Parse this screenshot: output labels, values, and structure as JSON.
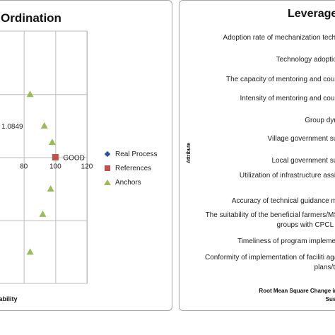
{
  "left_chart": {
    "title": "Ordination",
    "x_axis_title": "nability",
    "ref_label": "GOOD",
    "process_label": "1.0849",
    "x_tick_labels": [
      "80",
      "100",
      "120"
    ],
    "legend": [
      {
        "label": "Real Process",
        "color": "#2e4fa0",
        "marker": "diamond"
      },
      {
        "label": "References",
        "color": "#c0504d",
        "marker": "square"
      },
      {
        "label": "Anchors",
        "color": "#9bbb59",
        "marker": "triangle"
      }
    ]
  },
  "right_chart": {
    "title": "Leverage",
    "y_axis_title": "Attribute",
    "footer_line1": "Root Mean Square Change in Ord",
    "footer_line2": "Sustaina",
    "attributes": [
      "Adoption rate of mechanization technolo",
      "Technology adoption ra",
      "The capacity of mentoring and counseli",
      "Intensity of mentoring and counseli",
      "Group dynami",
      "Village government suppo",
      "Local government suppo",
      "Utilization of infrastructure assistan",
      "Accuracy of technical guidance mater",
      "The suitability of the beneficial farmers/MSME groups with CPCL decr",
      "Timeliness of program implementati",
      "Conformity of implementation of faciliti against plans/targe"
    ]
  },
  "chart_data": [
    {
      "type": "scatter",
      "title": "Ordination",
      "xlabel": "nability",
      "xlim": [
        60,
        120
      ],
      "ylim": [
        -100,
        100
      ],
      "x_ticks": [
        80,
        100,
        120
      ],
      "grid": true,
      "legend_position": "right",
      "series": [
        {
          "name": "Real Process",
          "points": [],
          "label": "1.0849"
        },
        {
          "name": "References",
          "points": [
            {
              "x": 100,
              "y": 0,
              "label": "GOOD"
            }
          ]
        },
        {
          "name": "Anchors",
          "points": [
            {
              "x": 58,
              "y": 75
            },
            {
              "x": 84,
              "y": 50
            },
            {
              "x": 93,
              "y": 25
            },
            {
              "x": 98,
              "y": 12
            },
            {
              "x": 97,
              "y": -25
            },
            {
              "x": 92,
              "y": -45
            },
            {
              "x": 84,
              "y": -75
            }
          ]
        }
      ]
    },
    {
      "type": "bar",
      "title": "Leverage",
      "ylabel": "Attribute",
      "xlabel": "Root Mean Square Change in Ord Sustaina",
      "categories": [
        "Adoption rate of mechanization technolo",
        "Technology adoption ra",
        "The capacity of mentoring and counseli",
        "Intensity of mentoring and counseli",
        "Group dynami",
        "Village government suppo",
        "Local government suppo",
        "Utilization of infrastructure assistan",
        "Accuracy of technical guidance mater",
        "The suitability of the beneficial farmers/MSME groups with CPCL decr",
        "Timeliness of program implementati",
        "Conformity of implementation of faciliti against plans/targe"
      ]
    }
  ]
}
